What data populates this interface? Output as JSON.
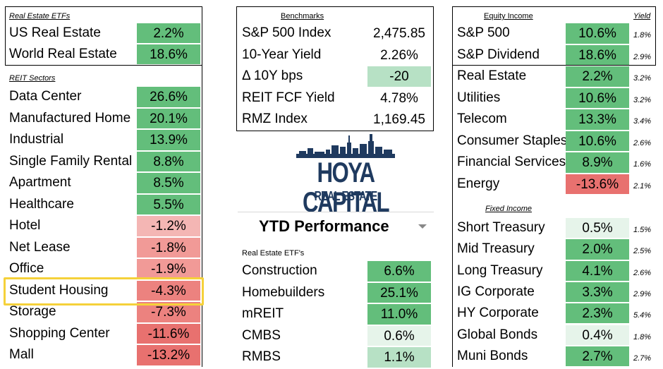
{
  "colors": {
    "green": "#63be7b",
    "green_light": "#b7e1c5",
    "green_pale": "#e6f4ea",
    "red_1": "#f4b6b4",
    "red_2": "#f19a97",
    "red_3": "#ec827f",
    "red_4": "#e8716f",
    "highlight": "#f5d13a"
  },
  "left": {
    "etf_header": "Real Estate ETFs",
    "etfs": [
      {
        "name": "US Real Estate",
        "value": "2.2%",
        "shade": "green"
      },
      {
        "name": "World Real Estate",
        "value": "18.6%",
        "shade": "green"
      }
    ],
    "sectors_header": "REIT Sectors",
    "sectors": [
      {
        "name": "Data Center",
        "value": "26.6%",
        "shade": "green"
      },
      {
        "name": "Manufactured Home",
        "value": "20.1%",
        "shade": "green"
      },
      {
        "name": "Industrial",
        "value": "13.9%",
        "shade": "green"
      },
      {
        "name": "Single Family Rental",
        "value": "8.8%",
        "shade": "green"
      },
      {
        "name": "Apartment",
        "value": "8.5%",
        "shade": "green"
      },
      {
        "name": "Healthcare",
        "value": "5.5%",
        "shade": "green"
      },
      {
        "name": "Hotel",
        "value": "-1.2%",
        "shade": "red_1"
      },
      {
        "name": "Net Lease",
        "value": "-1.8%",
        "shade": "red_2"
      },
      {
        "name": "Office",
        "value": "-1.9%",
        "shade": "red_2"
      },
      {
        "name": "Student Housing",
        "value": "-4.3%",
        "shade": "red_3"
      },
      {
        "name": "Storage",
        "value": "-7.3%",
        "shade": "red_3"
      },
      {
        "name": "Shopping Center",
        "value": "-11.6%",
        "shade": "red_4"
      },
      {
        "name": "Mall",
        "value": "-13.2%",
        "shade": "red_4"
      }
    ]
  },
  "middle": {
    "benchmarks_header": "Benchmarks",
    "benchmarks": [
      {
        "name": "S&P 500 Index",
        "value": "2,475.85",
        "shade": "none"
      },
      {
        "name": "10-Year Yield",
        "value": "2.26%",
        "shade": "none"
      },
      {
        "name": "Δ 10Y bps",
        "value": "-20",
        "shade": "green_light"
      },
      {
        "name": "REIT FCF Yield",
        "value": "4.78%",
        "shade": "none"
      },
      {
        "name": "RMZ Index",
        "value": "1,169.45",
        "shade": "none"
      }
    ],
    "logo_text_main": "HOYA CAPITAL",
    "logo_text_sub": "REAL ESTATE",
    "period_select": "YTD Performance",
    "etf_header": "Real Estate ETF's",
    "etfs": [
      {
        "name": "Construction",
        "value": "6.6%",
        "shade": "green"
      },
      {
        "name": "Homebuilders",
        "value": "25.1%",
        "shade": "green"
      },
      {
        "name": "mREIT",
        "value": "11.0%",
        "shade": "green"
      },
      {
        "name": "CMBS",
        "value": "0.6%",
        "shade": "green_pale"
      },
      {
        "name": "RMBS",
        "value": "1.1%",
        "shade": "green_light"
      }
    ]
  },
  "right": {
    "equity_header": "Equity Income",
    "yield_header": "Yield",
    "equity": [
      {
        "name": "S&P 500",
        "value": "10.6%",
        "yield": "1.8%",
        "shade": "green"
      },
      {
        "name": "S&P Dividend",
        "value": "18.6%",
        "yield": "2.9%",
        "shade": "green"
      },
      {
        "name": "Real Estate",
        "value": "2.2%",
        "yield": "3.2%",
        "shade": "green"
      },
      {
        "name": "Utilities",
        "value": "10.6%",
        "yield": "3.2%",
        "shade": "green"
      },
      {
        "name": "Telecom",
        "value": "13.3%",
        "yield": "3.4%",
        "shade": "green"
      },
      {
        "name": "Consumer Staples",
        "value": "10.6%",
        "yield": "2.6%",
        "shade": "green"
      },
      {
        "name": "Financial Services",
        "value": "8.9%",
        "yield": "1.6%",
        "shade": "green"
      },
      {
        "name": "Energy",
        "value": "-13.6%",
        "yield": "2.1%",
        "shade": "red_4"
      }
    ],
    "fixed_header": "Fixed Income",
    "fixed": [
      {
        "name": "Short Treasury",
        "value": "0.5%",
        "yield": "1.5%",
        "shade": "green_pale"
      },
      {
        "name": "Mid Treasury",
        "value": "2.0%",
        "yield": "2.5%",
        "shade": "green"
      },
      {
        "name": "Long Treasury",
        "value": "4.1%",
        "yield": "2.6%",
        "shade": "green"
      },
      {
        "name": "IG Corporate",
        "value": "3.3%",
        "yield": "2.9%",
        "shade": "green"
      },
      {
        "name": "HY Corporate",
        "value": "2.3%",
        "yield": "5.4%",
        "shade": "green"
      },
      {
        "name": "Global Bonds",
        "value": "0.4%",
        "yield": "1.8%",
        "shade": "green_pale"
      },
      {
        "name": "Muni Bonds",
        "value": "2.7%",
        "yield": "2.7%",
        "shade": "green"
      }
    ]
  }
}
